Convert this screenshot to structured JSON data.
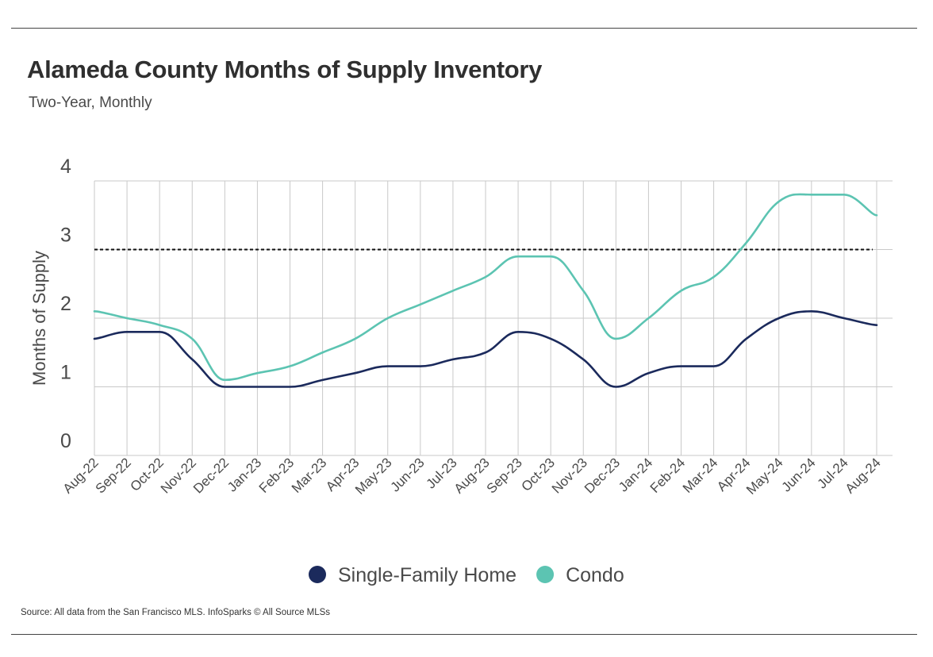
{
  "header": {
    "title": "Alameda County Months of Supply Inventory",
    "subtitle": "Two-Year, Monthly"
  },
  "footer": {
    "source": "Source:  All data from the San Francisco MLS. InfoSparks © All Source MLSs"
  },
  "chart_data": {
    "type": "line",
    "title": "Alameda County Months of Supply Inventory",
    "subtitle": "Two-Year, Monthly",
    "xlabel": "",
    "ylabel": "Months of Supply",
    "ylim": [
      0,
      4
    ],
    "yticks": [
      0,
      1,
      2,
      3,
      4
    ],
    "grid": true,
    "legend_position": "bottom-center",
    "categories": [
      "Aug-22",
      "Sep-22",
      "Oct-22",
      "Nov-22",
      "Dec-22",
      "Jan-23",
      "Feb-23",
      "Mar-23",
      "Apr-23",
      "May-23",
      "Jun-23",
      "Jul-23",
      "Aug-23",
      "Sep-23",
      "Oct-23",
      "Nov-23",
      "Dec-23",
      "Jan-24",
      "Feb-24",
      "Mar-24",
      "Apr-24",
      "May-24",
      "Jun-24",
      "Jul-24",
      "Aug-24"
    ],
    "series": [
      {
        "name": "Single-Family Home",
        "color": "#1b2a5c",
        "values": [
          1.7,
          1.8,
          1.8,
          1.4,
          1.0,
          1.0,
          1.0,
          1.1,
          1.2,
          1.3,
          1.3,
          1.4,
          1.5,
          1.8,
          1.7,
          1.4,
          1.0,
          1.2,
          1.3,
          1.3,
          1.7,
          2.0,
          2.1,
          2.0,
          1.9
        ]
      },
      {
        "name": "Condo",
        "color": "#5cc4b2",
        "values": [
          2.1,
          2.0,
          1.9,
          1.7,
          1.1,
          1.2,
          1.3,
          1.5,
          1.7,
          2.0,
          2.2,
          2.4,
          2.6,
          2.9,
          2.9,
          2.4,
          1.7,
          2.0,
          2.4,
          2.6,
          3.1,
          3.7,
          3.8,
          3.8,
          3.5
        ]
      }
    ],
    "reference_line": {
      "y": 3,
      "style": "dashed",
      "color": "#111111"
    }
  }
}
